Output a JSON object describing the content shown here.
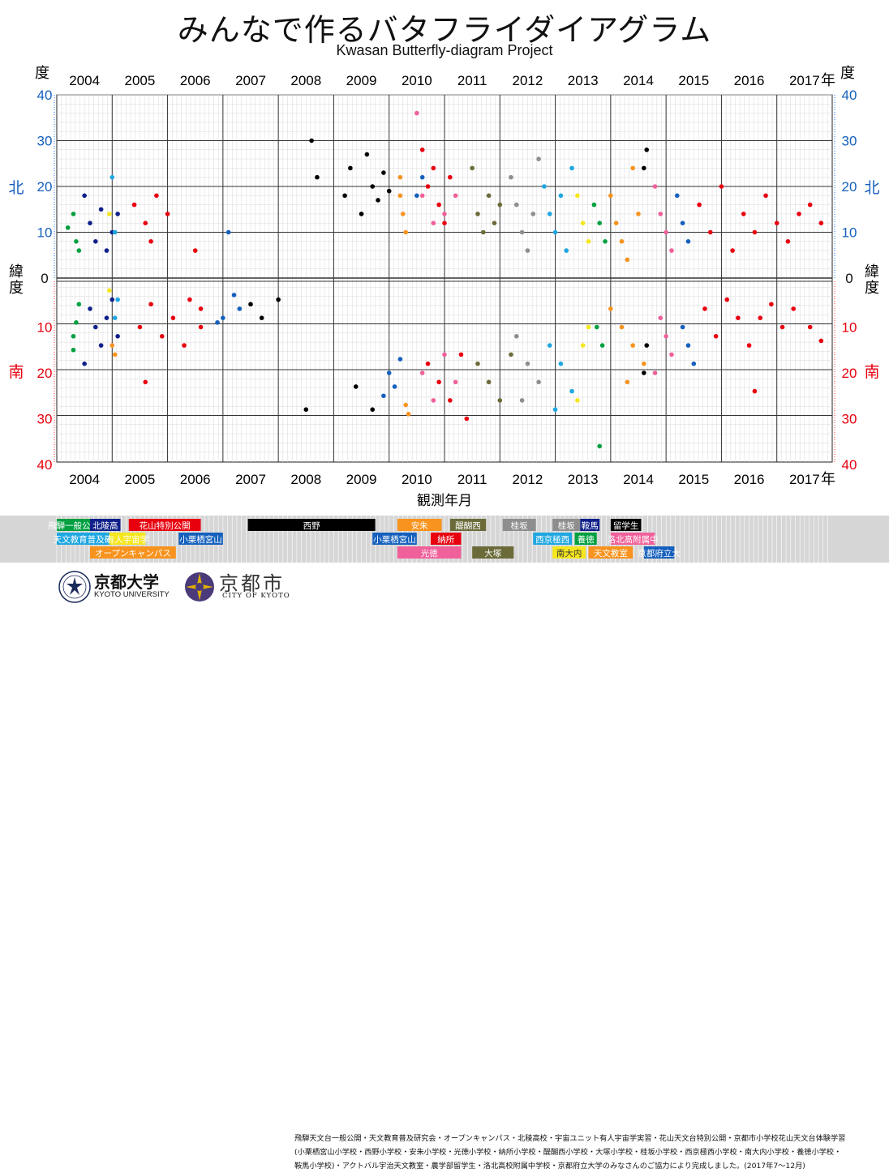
{
  "header": {
    "title": "みんなで作るバタフライダイアグラム",
    "subtitle": "Kwasan Butterfly-diagram Project"
  },
  "axes": {
    "unit_top_left": "度",
    "unit_top_right": "度",
    "year_unit": "年",
    "lat_label_chars": [
      "緯",
      "度"
    ],
    "north": "北",
    "south": "南",
    "xlabel": "観測年月"
  },
  "chart_data": {
    "type": "scatter",
    "title": "みんなで作るバタフライダイアグラム",
    "subtitle": "Kwasan Butterfly-diagram Project",
    "xlabel": "観測年月",
    "ylabel": "緯度",
    "xlim": [
      "2004-01",
      "2017-12"
    ],
    "ylim_north": [
      0,
      40
    ],
    "ylim_south": [
      0,
      40
    ],
    "x_ticks": [
      "2004",
      "2005",
      "2006",
      "2007",
      "2008",
      "2009",
      "2010",
      "2011",
      "2012",
      "2013",
      "2014",
      "2015",
      "2016",
      "2017"
    ],
    "y_ticks_north": [
      "40",
      "30",
      "20",
      "10",
      "0"
    ],
    "y_ticks_south": [
      "10",
      "20",
      "30",
      "40"
    ],
    "grid": true,
    "series": [
      {
        "name": "飛騨一般公開",
        "color": "#00a040",
        "points": [
          [
            2004.2,
            11
          ],
          [
            2004.3,
            14
          ],
          [
            2004.35,
            8
          ],
          [
            2004.4,
            6
          ],
          [
            2004.3,
            -12
          ],
          [
            2004.35,
            -9
          ],
          [
            2004.4,
            -5
          ],
          [
            2004.3,
            -15
          ]
        ]
      },
      {
        "name": "北陵高",
        "color": "#10208a",
        "points": [
          [
            2004.5,
            18
          ],
          [
            2004.6,
            12
          ],
          [
            2004.7,
            8
          ],
          [
            2004.8,
            15
          ],
          [
            2004.9,
            6
          ],
          [
            2005.0,
            10
          ],
          [
            2005.1,
            14
          ],
          [
            2004.6,
            -6
          ],
          [
            2004.7,
            -10
          ],
          [
            2004.8,
            -14
          ],
          [
            2004.9,
            -8
          ],
          [
            2005.0,
            -4
          ],
          [
            2005.1,
            -12
          ],
          [
            2004.5,
            -18
          ]
        ]
      },
      {
        "name": "花山特別公開",
        "color": "#e8000f",
        "points": [
          [
            2005.4,
            16
          ],
          [
            2005.6,
            12
          ],
          [
            2005.8,
            18
          ],
          [
            2005.7,
            8
          ],
          [
            2006.0,
            14
          ],
          [
            2006.5,
            6
          ],
          [
            2006.6,
            -6
          ],
          [
            2005.5,
            -10
          ],
          [
            2005.7,
            -5
          ],
          [
            2005.9,
            -12
          ],
          [
            2006.1,
            -8
          ],
          [
            2006.3,
            -14
          ],
          [
            2006.4,
            -4
          ],
          [
            2006.6,
            -10
          ],
          [
            2005.6,
            -22
          ]
        ]
      },
      {
        "name": "西野",
        "color": "#000000",
        "points": [
          [
            2008.6,
            30
          ],
          [
            2008.7,
            22
          ],
          [
            2009.2,
            18
          ],
          [
            2009.3,
            24
          ],
          [
            2009.5,
            14
          ],
          [
            2009.6,
            27
          ],
          [
            2009.7,
            20
          ],
          [
            2009.8,
            17
          ],
          [
            2009.9,
            23
          ],
          [
            2010.0,
            19
          ],
          [
            2007.5,
            -5
          ],
          [
            2007.7,
            -8
          ],
          [
            2008.0,
            -4
          ],
          [
            2008.5,
            -28
          ],
          [
            2009.4,
            -23
          ],
          [
            2009.7,
            -28
          ]
        ]
      },
      {
        "name": "小栗栖宮山",
        "color": "#1560bd",
        "points": [
          [
            2007.1,
            10
          ],
          [
            2007.3,
            -6
          ],
          [
            2007.0,
            -8
          ],
          [
            2007.2,
            -3
          ],
          [
            2006.9,
            -9
          ],
          [
            2010.0,
            -20
          ],
          [
            2010.1,
            -23
          ],
          [
            2010.2,
            -17
          ],
          [
            2009.9,
            -25
          ],
          [
            2010.6,
            22
          ],
          [
            2010.5,
            18
          ]
        ]
      },
      {
        "name": "安朱",
        "color": "#f7931e",
        "points": [
          [
            2005.0,
            -14
          ],
          [
            2005.05,
            -16
          ],
          [
            2010.2,
            22
          ],
          [
            2010.25,
            14
          ],
          [
            2010.3,
            10
          ],
          [
            2010.2,
            18
          ],
          [
            2010.35,
            -29
          ],
          [
            2010.3,
            -27
          ]
        ]
      },
      {
        "name": "納所",
        "color": "#e8000f",
        "points": [
          [
            2010.6,
            28
          ],
          [
            2010.7,
            20
          ],
          [
            2010.8,
            24
          ],
          [
            2010.9,
            16
          ],
          [
            2011.0,
            12
          ],
          [
            2011.1,
            22
          ],
          [
            2010.7,
            -18
          ],
          [
            2010.9,
            -22
          ],
          [
            2011.1,
            -26
          ],
          [
            2011.3,
            -16
          ],
          [
            2011.4,
            -30
          ]
        ]
      },
      {
        "name": "光徳",
        "color": "#f0609a",
        "points": [
          [
            2010.5,
            36
          ],
          [
            2010.6,
            18
          ],
          [
            2010.8,
            12
          ],
          [
            2011.0,
            14
          ],
          [
            2011.2,
            18
          ],
          [
            2010.6,
            -20
          ],
          [
            2010.8,
            -26
          ],
          [
            2011.0,
            -16
          ],
          [
            2011.2,
            -22
          ]
        ]
      },
      {
        "name": "醍醐西",
        "color": "#6b6b3a",
        "points": [
          [
            2011.5,
            24
          ],
          [
            2011.6,
            14
          ],
          [
            2011.7,
            10
          ],
          [
            2011.8,
            18
          ],
          [
            2011.9,
            12
          ],
          [
            2012.0,
            16
          ],
          [
            2011.6,
            -18
          ],
          [
            2011.8,
            -22
          ],
          [
            2012.0,
            -26
          ],
          [
            2012.2,
            -16
          ]
        ]
      },
      {
        "name": "桂坂",
        "color": "#8e8e8e",
        "points": [
          [
            2012.2,
            22
          ],
          [
            2012.3,
            16
          ],
          [
            2012.4,
            10
          ],
          [
            2012.5,
            6
          ],
          [
            2012.6,
            14
          ],
          [
            2012.7,
            26
          ],
          [
            2012.3,
            -12
          ],
          [
            2012.5,
            -18
          ],
          [
            2012.7,
            -22
          ],
          [
            2012.4,
            -26
          ]
        ]
      },
      {
        "name": "西京極西",
        "color": "#1ea7e1",
        "points": [
          [
            2012.8,
            20
          ],
          [
            2012.9,
            14
          ],
          [
            2013.0,
            10
          ],
          [
            2013.1,
            18
          ],
          [
            2013.2,
            6
          ],
          [
            2013.3,
            24
          ],
          [
            2012.9,
            -14
          ],
          [
            2013.1,
            -18
          ],
          [
            2013.3,
            -24
          ],
          [
            2013.0,
            -28
          ]
        ]
      },
      {
        "name": "南大内",
        "color": "#f5e61e",
        "points": [
          [
            2013.4,
            18
          ],
          [
            2013.5,
            12
          ],
          [
            2013.6,
            8
          ],
          [
            2013.5,
            -14
          ],
          [
            2013.6,
            -10
          ],
          [
            2013.4,
            -26
          ]
        ]
      },
      {
        "name": "養徳",
        "color": "#00a040",
        "points": [
          [
            2013.7,
            16
          ],
          [
            2013.8,
            12
          ],
          [
            2013.9,
            8
          ],
          [
            2013.75,
            -10
          ],
          [
            2013.85,
            -14
          ],
          [
            2013.8,
            -36
          ]
        ]
      },
      {
        "name": "天文教室",
        "color": "#f7931e",
        "points": [
          [
            2014.0,
            18
          ],
          [
            2014.1,
            12
          ],
          [
            2014.2,
            8
          ],
          [
            2014.3,
            4
          ],
          [
            2014.4,
            24
          ],
          [
            2014.5,
            14
          ],
          [
            2014.0,
            -6
          ],
          [
            2014.2,
            -10
          ],
          [
            2014.4,
            -14
          ],
          [
            2014.6,
            -18
          ],
          [
            2014.3,
            -22
          ]
        ]
      },
      {
        "name": "留学生",
        "color": "#000000",
        "points": [
          [
            2014.6,
            24
          ],
          [
            2014.65,
            28
          ],
          [
            2014.6,
            -20
          ],
          [
            2014.65,
            -14
          ]
        ]
      },
      {
        "name": "洛北高附属中",
        "color": "#f0609a",
        "points": [
          [
            2014.8,
            20
          ],
          [
            2014.9,
            14
          ],
          [
            2015.0,
            10
          ],
          [
            2015.1,
            6
          ],
          [
            2014.9,
            -8
          ],
          [
            2015.0,
            -12
          ],
          [
            2015.1,
            -16
          ],
          [
            2014.8,
            -20
          ]
        ]
      },
      {
        "name": "京都府立大",
        "color": "#1560bd",
        "points": [
          [
            2015.2,
            18
          ],
          [
            2015.3,
            12
          ],
          [
            2015.4,
            8
          ],
          [
            2015.3,
            -10
          ],
          [
            2015.4,
            -14
          ],
          [
            2015.5,
            -18
          ]
        ]
      },
      {
        "name": "オープンキャンパス",
        "color": "#e8000f",
        "points": [
          [
            2015.6,
            16
          ],
          [
            2015.8,
            10
          ],
          [
            2016.0,
            20
          ],
          [
            2016.2,
            6
          ],
          [
            2016.4,
            14
          ],
          [
            2016.6,
            10
          ],
          [
            2016.8,
            18
          ],
          [
            2017.0,
            12
          ],
          [
            2017.2,
            8
          ],
          [
            2017.4,
            14
          ],
          [
            2017.6,
            16
          ],
          [
            2017.8,
            12
          ],
          [
            2015.7,
            -6
          ],
          [
            2015.9,
            -12
          ],
          [
            2016.1,
            -4
          ],
          [
            2016.3,
            -8
          ],
          [
            2016.5,
            -14
          ],
          [
            2016.7,
            -8
          ],
          [
            2016.9,
            -5
          ],
          [
            2017.1,
            -10
          ],
          [
            2017.3,
            -6
          ],
          [
            2017.6,
            -10
          ],
          [
            2017.8,
            -13
          ],
          [
            2016.6,
            -24
          ]
        ]
      },
      {
        "name": "天文教育普及研",
        "color": "#1ea7e1",
        "points": [
          [
            2005.0,
            22
          ],
          [
            2005.05,
            10
          ],
          [
            2005.1,
            -4
          ],
          [
            2005.05,
            -8
          ]
        ]
      },
      {
        "name": "有人宇宙学",
        "color": "#f5e61e",
        "points": [
          [
            2004.95,
            14
          ],
          [
            2004.95,
            -2
          ]
        ]
      }
    ]
  },
  "legend": {
    "rows": [
      [
        {
          "label": "飛騨一般公開",
          "color": "#00a040",
          "text": "#ffffff",
          "x0": 2004.0,
          "x1": 2004.6
        },
        {
          "label": "北陵高",
          "color": "#10208a",
          "text": "#ffffff",
          "x0": 2004.6,
          "x1": 2005.15
        },
        {
          "label": "花山特別公開",
          "color": "#e8000f",
          "text": "#ffffff",
          "x0": 2005.3,
          "x1": 2006.6
        },
        {
          "label": "西野",
          "color": "#000000",
          "text": "#ffffff",
          "x0": 2007.45,
          "x1": 2009.75
        },
        {
          "label": "安朱",
          "color": "#f7931e",
          "text": "#ffffff",
          "x0": 2010.15,
          "x1": 2010.95
        },
        {
          "label": "醍醐西",
          "color": "#6b6b3a",
          "text": "#ffffff",
          "x0": 2011.1,
          "x1": 2011.75
        },
        {
          "label": "桂坂",
          "color": "#8e8e8e",
          "text": "#ffffff",
          "x0": 2012.05,
          "x1": 2012.65
        },
        {
          "label": "桂坂",
          "color": "#8e8e8e",
          "text": "#ffffff",
          "x0": 2012.95,
          "x1": 2013.45
        },
        {
          "label": "鞍馬",
          "color": "#10208a",
          "text": "#ffffff",
          "x0": 2013.45,
          "x1": 2013.8
        },
        {
          "label": "留学生",
          "color": "#000000",
          "text": "#ffffff",
          "x0": 2014.0,
          "x1": 2014.55
        }
      ],
      [
        {
          "label": "天文教育普及研",
          "color": "#1ea7e1",
          "text": "#ffffff",
          "x0": 2004.0,
          "x1": 2004.95
        },
        {
          "label": "有人宇宙学",
          "color": "#f5e61e",
          "text": "#ffffff",
          "x0": 2004.95,
          "x1": 2005.6
        },
        {
          "label": "小栗栖宮山",
          "color": "#1560bd",
          "text": "#ffffff",
          "x0": 2006.2,
          "x1": 2007.0
        },
        {
          "label": "小栗栖宮山",
          "color": "#1560bd",
          "text": "#ffffff",
          "x0": 2009.7,
          "x1": 2010.5
        },
        {
          "label": "納所",
          "color": "#e8000f",
          "text": "#ffffff",
          "x0": 2010.75,
          "x1": 2011.3
        },
        {
          "label": "西京極西",
          "color": "#1ea7e1",
          "text": "#ffffff",
          "x0": 2012.6,
          "x1": 2013.3
        },
        {
          "label": "養徳",
          "color": "#00a040",
          "text": "#ffffff",
          "x0": 2013.35,
          "x1": 2013.75
        },
        {
          "label": "洛北高附属中",
          "color": "#f0609a",
          "text": "#ffffff",
          "x0": 2014.0,
          "x1": 2014.8
        }
      ],
      [
        {
          "label": "オープンキャンパス",
          "color": "#f7931e",
          "text": "#ffffff",
          "x0": 2004.6,
          "x1": 2006.15
        },
        {
          "label": "光徳",
          "color": "#f0609a",
          "text": "#ffffff",
          "x0": 2010.15,
          "x1": 2011.3
        },
        {
          "label": "大塚",
          "color": "#6b6b3a",
          "text": "#ffffff",
          "x0": 2011.5,
          "x1": 2012.25
        },
        {
          "label": "南大内",
          "color": "#f5e61e",
          "text": "#333333",
          "x0": 2012.95,
          "x1": 2013.55
        },
        {
          "label": "天文教室",
          "color": "#f7931e",
          "text": "#ffffff",
          "x0": 2013.6,
          "x1": 2014.4
        },
        {
          "label": "京都府立大",
          "color": "#1560bd",
          "text": "#ffffff",
          "x0": 2014.6,
          "x1": 2015.15
        }
      ]
    ]
  },
  "footer": {
    "kyoto_univ_jp": "京都大学",
    "kyoto_univ_en": "KYOTO UNIVERSITY",
    "kyoto_city_jp": "京都市",
    "kyoto_city_en": "CITY OF KYOTO",
    "credit_lines": [
      "飛騨天文台一般公開・天文教育普及研究会・オープンキャンパス・北稜高校・宇宙ユニット有人宇宙学実習・花山天文台特別公開・京都市小学校花山天文台体験学習",
      "(小栗栖宮山小学校・西野小学校・安朱小学校・光徳小学校・納所小学校・醍醐西小学校・大塚小学校・桂坂小学校・西京極西小学校・南大内小学校・養徳小学校・",
      "鞍馬小学校)・アクトバル宇治天文教室・農学部留学生・洛北高校附属中学校・京都府立大学のみなさんのご協力により完成しました。(2017年7〜12月)"
    ]
  }
}
